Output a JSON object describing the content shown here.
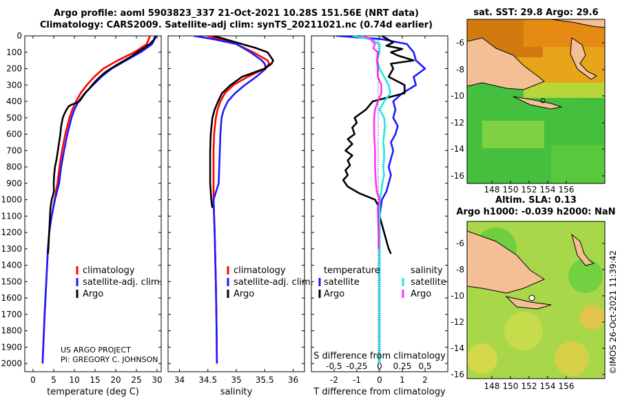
{
  "header": {
    "title_line1": "Argo profile: aoml 5903823_337 21-Oct-2021 10.28S 151.56E (NRT data)",
    "title_line2": "Climatology: CARS2009. Satellite-adj clim: synTS_20211021.nc (0.74d earlier)"
  },
  "colors": {
    "climatology": "#ff0000",
    "satellite": "#1a1aff",
    "argo": "#000000",
    "sat_salinity": "#22e5e5",
    "argo_salinity": "#ff33ff"
  },
  "legend": {
    "climatology": "climatology",
    "satellite_adj": "satellite-adj. clim.",
    "argo": "Argo",
    "temperature": "temperature",
    "salinity": "salinity",
    "satellite": "satellite"
  },
  "credits": {
    "line1": "US ARGO PROJECT",
    "line2": "PI: GREGORY C. JOHNSON",
    "imos": "©IMOS 26-Oct-2021 11:39:42"
  },
  "maps": {
    "sst_title": "sat. SST: 29.8 Argo: 29.6",
    "sla_title1": "Altim. SLA: 0.13",
    "sla_title2": "Argo h1000: -0.039 h2000: NaN",
    "x_ticks": [
      "148",
      "150",
      "152",
      "154",
      "156"
    ],
    "y_ticks": [
      "-6",
      "-8",
      "-10",
      "-12",
      "-14",
      "-16"
    ]
  },
  "chart_data": [
    {
      "type": "line",
      "title": "",
      "xlabel": "temperature (deg C)",
      "ylabel": "",
      "xlim": [
        -2,
        31
      ],
      "ylim": [
        2050,
        0
      ],
      "x_ticks": [
        0,
        5,
        10,
        15,
        20,
        25,
        30
      ],
      "y_ticks": [
        0,
        100,
        200,
        300,
        400,
        500,
        600,
        700,
        800,
        900,
        1000,
        1100,
        1200,
        1300,
        1400,
        1500,
        1600,
        1700,
        1800,
        1900,
        2000
      ],
      "series": [
        {
          "name": "climatology",
          "depth": [
            0,
            50,
            100,
            150,
            200,
            250,
            300,
            350,
            400,
            450,
            500,
            600,
            700,
            800,
            900,
            1000,
            1100,
            1200,
            1300,
            1500,
            1700,
            2000
          ],
          "values": [
            28.3,
            27.5,
            24.5,
            20.5,
            17,
            14.8,
            13,
            11.5,
            10.4,
            9.5,
            8.8,
            7.8,
            7,
            6.4,
            5.9,
            5.2,
            4.5,
            3.9,
            3.6,
            3.2,
            2.8,
            2.3
          ]
        },
        {
          "name": "satellite-adj. clim.",
          "depth": [
            0,
            50,
            100,
            150,
            200,
            250,
            300,
            350,
            400,
            450,
            500,
            600,
            700,
            800,
            900,
            1000,
            1100,
            1200,
            1300,
            1500,
            1700,
            2000
          ],
          "values": [
            29.8,
            28.8,
            26,
            22.5,
            19,
            16.5,
            14.5,
            12.5,
            11,
            10,
            9.3,
            8.3,
            7.5,
            6.8,
            6.3,
            5.3,
            4.5,
            3.9,
            3.6,
            3.2,
            2.8,
            2.3
          ]
        },
        {
          "name": "Argo",
          "depth": [
            0,
            25,
            50,
            75,
            100,
            125,
            150,
            175,
            200,
            225,
            250,
            275,
            300,
            325,
            350,
            375,
            400,
            410,
            420,
            430,
            450,
            475,
            500,
            550,
            600,
            650,
            700,
            750,
            800,
            850,
            900,
            950,
            1000,
            1050,
            1100,
            1150,
            1200,
            1250,
            1300,
            1330
          ],
          "values": [
            29.6,
            29.2,
            28.2,
            26.8,
            25.2,
            23.8,
            22.1,
            20.4,
            18.8,
            17.3,
            16.2,
            15.2,
            14.3,
            13.5,
            12.6,
            11.9,
            11.2,
            10.4,
            9.3,
            8.6,
            8.1,
            7.6,
            7.2,
            6.8,
            6.6,
            6.3,
            6.0,
            5.7,
            5.3,
            5.1,
            5.0,
            5.05,
            4.5,
            4.2,
            4.1,
            4.0,
            3.9,
            3.8,
            3.7,
            3.6
          ]
        }
      ]
    },
    {
      "type": "line",
      "title": "",
      "xlabel": "salinity",
      "ylabel": "",
      "xlim": [
        33.8,
        36.2
      ],
      "ylim": [
        2050,
        0
      ],
      "x_ticks": [
        34,
        34.5,
        35,
        35.5,
        36
      ],
      "series": [
        {
          "name": "climatology",
          "depth": [
            0,
            50,
            100,
            150,
            170,
            200,
            250,
            300,
            350,
            400,
            450,
            500,
            600,
            700,
            800,
            900,
            1000,
            1100,
            1200,
            1500,
            1700,
            2000
          ],
          "values": [
            34.5,
            35.0,
            35.3,
            35.55,
            35.58,
            35.5,
            35.2,
            34.95,
            34.8,
            34.72,
            34.67,
            34.64,
            34.61,
            34.6,
            34.6,
            34.6,
            34.6,
            34.61,
            34.62,
            34.64,
            34.65,
            34.66
          ]
        },
        {
          "name": "satellite-adj. clim.",
          "depth": [
            0,
            20,
            50,
            100,
            150,
            170,
            200,
            250,
            300,
            350,
            400,
            450,
            500,
            600,
            700,
            800,
            900,
            1000,
            1100,
            1200,
            1500,
            1700,
            2000
          ],
          "values": [
            34.25,
            34.6,
            35.0,
            35.25,
            35.45,
            35.5,
            35.52,
            35.35,
            35.15,
            34.98,
            34.85,
            34.78,
            34.74,
            34.72,
            34.71,
            34.7,
            34.69,
            34.6,
            34.61,
            34.62,
            34.64,
            34.65,
            34.66
          ]
        },
        {
          "name": "Argo",
          "depth": [
            0,
            50,
            75,
            100,
            125,
            150,
            170,
            200,
            250,
            300,
            350,
            400,
            450,
            500,
            600,
            700,
            800,
            900,
            1000,
            1050
          ],
          "values": [
            34.6,
            35.1,
            35.35,
            35.55,
            35.6,
            35.65,
            35.62,
            35.5,
            35.1,
            34.9,
            34.75,
            34.68,
            34.62,
            34.58,
            34.55,
            34.54,
            34.54,
            34.54,
            34.56,
            34.58
          ]
        }
      ]
    },
    {
      "type": "line",
      "title": "",
      "xlabel": "T difference from climatology",
      "xlabel2": "S difference from climatology",
      "xlim": [
        -3,
        3
      ],
      "ylim": [
        2050,
        0
      ],
      "x_ticks": [
        -2,
        -1,
        0,
        1,
        2
      ],
      "s_ticks": [
        -0.5,
        -0.25,
        0,
        0.25,
        0.5
      ],
      "series": [
        {
          "name": "temperature satellite",
          "depth": [
            0,
            20,
            50,
            100,
            150,
            200,
            250,
            300,
            350,
            400,
            450,
            500,
            550,
            600,
            650,
            700,
            750,
            800,
            850,
            900,
            950,
            1000,
            1100,
            1200,
            1300,
            1500,
            1700,
            2000
          ],
          "values": [
            -1.9,
            0.1,
            1.2,
            1.5,
            1.6,
            2.0,
            1.5,
            1.6,
            1.0,
            0.6,
            0.7,
            0.6,
            0.8,
            0.7,
            0.5,
            0.6,
            0.5,
            0.4,
            0.5,
            0.4,
            0.3,
            0.1,
            0.0,
            0.0,
            0.0,
            0.0,
            0.0,
            0.0
          ]
        },
        {
          "name": "temperature Argo",
          "depth": [
            0,
            40,
            60,
            80,
            100,
            120,
            150,
            170,
            200,
            250,
            300,
            350,
            400,
            450,
            500,
            530,
            560,
            600,
            630,
            660,
            700,
            730,
            760,
            790,
            820,
            850,
            880,
            920,
            960,
            1000,
            1050,
            1100,
            1150,
            1200,
            1250,
            1300,
            1330
          ],
          "values": [
            0.1,
            0.6,
            0.3,
            1.0,
            0.5,
            0.8,
            1.5,
            0.5,
            0.6,
            0.4,
            1.1,
            1.1,
            -0.3,
            -0.6,
            -1.1,
            -1.0,
            -1.2,
            -1.1,
            -1.4,
            -1.2,
            -1.5,
            -1.2,
            -1.4,
            -1.3,
            -1.5,
            -1.4,
            -1.6,
            -1.4,
            -0.9,
            -0.2,
            0.0,
            0.0,
            0.1,
            0.2,
            0.3,
            0.4,
            0.5
          ]
        },
        {
          "name": "salinity satellite",
          "depth": [
            0,
            20,
            50,
            100,
            150,
            200,
            250,
            300,
            350,
            400,
            450,
            500,
            550,
            600,
            650,
            700,
            750,
            800,
            850,
            900,
            950,
            1000,
            1100,
            1200,
            1300,
            1500,
            1700,
            2000
          ],
          "values": [
            -0.3,
            -0.1,
            0.0,
            0.0,
            -0.03,
            0.0,
            0.05,
            0.1,
            0.12,
            0.05,
            0.0,
            0.05,
            0.06,
            0.05,
            0.04,
            0.05,
            0.05,
            0.04,
            0.05,
            0.03,
            0.02,
            0.0,
            0.0,
            0.0,
            0.0,
            0.0,
            0.0,
            0.0
          ]
        },
        {
          "name": "salinity Argo",
          "depth": [
            0,
            20,
            50,
            75,
            100,
            150,
            200,
            250,
            300,
            350,
            400,
            450,
            500,
            600,
            700,
            800,
            900,
            950,
            1000,
            1050,
            1200,
            1300
          ],
          "values": [
            -0.18,
            -0.1,
            -0.05,
            -0.07,
            -0.02,
            -0.03,
            -0.02,
            -0.02,
            0.02,
            0.02,
            -0.02,
            -0.05,
            -0.06,
            -0.06,
            -0.05,
            -0.05,
            -0.04,
            -0.03,
            0.0,
            -0.02,
            -0.01,
            -0.01
          ]
        }
      ]
    }
  ]
}
